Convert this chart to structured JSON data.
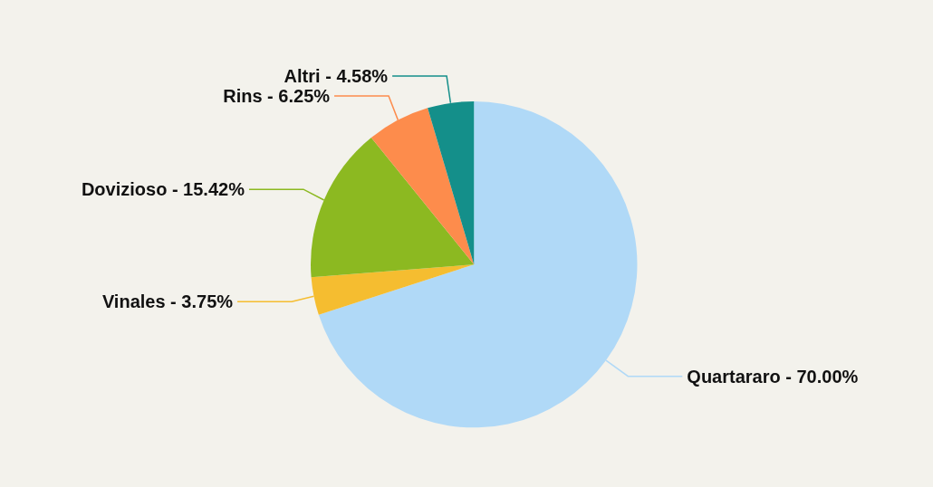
{
  "chart_data": {
    "type": "pie",
    "categories": [
      "Quartararo",
      "Vinales",
      "Dovizioso",
      "Rins",
      "Altri"
    ],
    "values": [
      70.0,
      3.75,
      15.42,
      6.25,
      4.58
    ],
    "value_labels": [
      "70.00%",
      "3.75%",
      "15.42%",
      "6.25%",
      "4.58%"
    ],
    "colors": [
      "#b0d9f7",
      "#f5bd30",
      "#8cb921",
      "#fd8c4c",
      "#148f8a"
    ],
    "legend": false
  }
}
